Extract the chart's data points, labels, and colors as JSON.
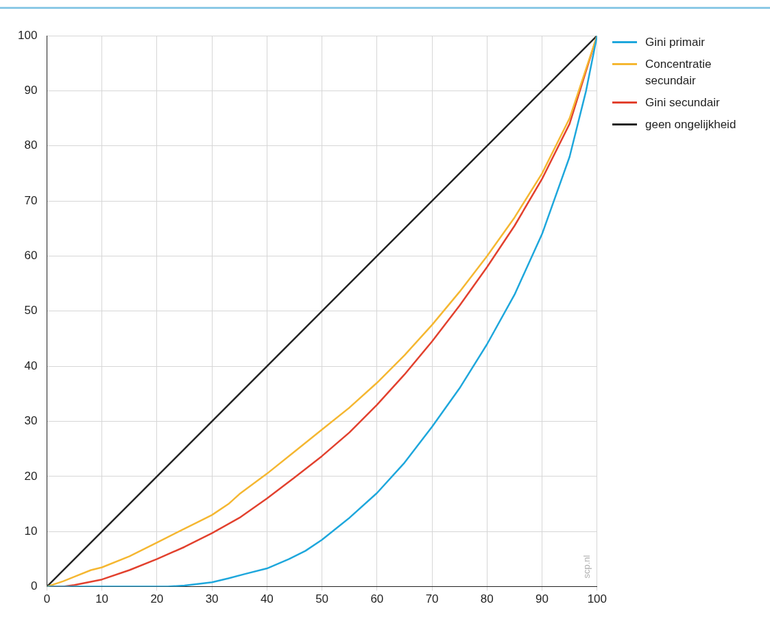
{
  "chart_data": {
    "type": "line",
    "xlim": [
      0,
      100
    ],
    "ylim": [
      0,
      100
    ],
    "xticks": [
      0,
      10,
      20,
      30,
      40,
      50,
      60,
      70,
      80,
      90,
      100
    ],
    "yticks": [
      0,
      10,
      20,
      30,
      40,
      50,
      60,
      70,
      80,
      90,
      100
    ],
    "grid": true,
    "legend": "right",
    "marker": "none",
    "line_style": "solid",
    "annotations": [
      "scp.nl"
    ],
    "series": [
      {
        "name": "Gini primair",
        "color": "#1ea7dc",
        "x": [
          0,
          10,
          20,
          22,
          25,
          30,
          33,
          36,
          40,
          44,
          47,
          50,
          55,
          60,
          65,
          70,
          75,
          80,
          85,
          90,
          95,
          98,
          100
        ],
        "values": [
          0,
          0,
          0,
          0,
          0.2,
          0.8,
          1.5,
          2.3,
          3.3,
          5,
          6.5,
          8.5,
          12.5,
          17,
          22.5,
          29,
          36,
          44,
          53,
          64,
          78,
          90,
          100
        ]
      },
      {
        "name": "Concentratie secundair",
        "color": "#f5b731",
        "x": [
          0,
          3,
          5,
          8,
          10,
          15,
          20,
          25,
          30,
          33,
          35,
          40,
          45,
          50,
          55,
          60,
          65,
          70,
          75,
          80,
          85,
          90,
          95,
          100
        ],
        "values": [
          0,
          1,
          1.8,
          3,
          3.5,
          5.5,
          8,
          10.5,
          13,
          15,
          16.8,
          20.5,
          24.5,
          28.5,
          32.5,
          37,
          42,
          47.5,
          53.5,
          60,
          67,
          75,
          85,
          100
        ]
      },
      {
        "name": "Gini secundair",
        "color": "#e2412e",
        "x": [
          0,
          3,
          5,
          10,
          15,
          20,
          25,
          30,
          35,
          40,
          45,
          50,
          55,
          60,
          65,
          70,
          75,
          80,
          85,
          90,
          95,
          100
        ],
        "values": [
          0,
          0,
          0.3,
          1.3,
          3,
          5,
          7.2,
          9.7,
          12.5,
          16,
          19.8,
          23.7,
          28,
          33,
          38.5,
          44.5,
          51,
          58,
          65.5,
          74,
          84,
          100
        ]
      },
      {
        "name": "geen ongelijkheid",
        "color": "#222222",
        "x": [
          0,
          100
        ],
        "values": [
          0,
          100
        ]
      }
    ]
  }
}
